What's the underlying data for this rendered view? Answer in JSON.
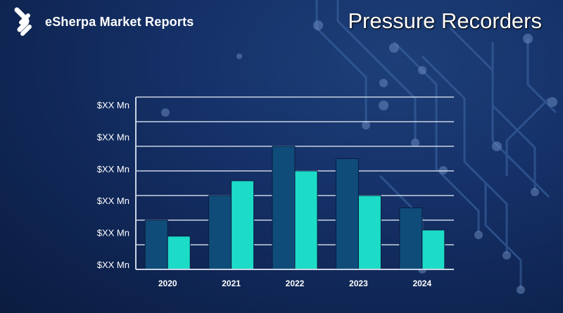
{
  "brand": {
    "name": "eSherpa Market Reports",
    "logo_icon": "esherpa-logo-icon"
  },
  "title": "Pressure Recorders",
  "colors": {
    "background": "#14306a",
    "series_dark": "#0f4c7a",
    "series_light": "#1ddcc7",
    "grid": "#c9d3e3",
    "text": "#ffffff"
  },
  "chart_data": {
    "type": "bar",
    "title": "",
    "xlabel": "",
    "ylabel": "",
    "categories": [
      "2020",
      "2021",
      "2022",
      "2023",
      "2024"
    ],
    "series": [
      {
        "values": [
          2.0,
          3.0,
          5.0,
          4.5,
          2.5
        ]
      },
      {
        "values": [
          1.35,
          3.6,
          4.0,
          3.0,
          1.6
        ]
      }
    ],
    "ylim": [
      0,
      7
    ],
    "y_tick_labels": [
      "$XX Mn",
      "$XX Mn",
      "$XX Mn",
      "$XX Mn",
      "$XX Mn",
      "$XX Mn"
    ],
    "grid": true,
    "legend": "none"
  }
}
